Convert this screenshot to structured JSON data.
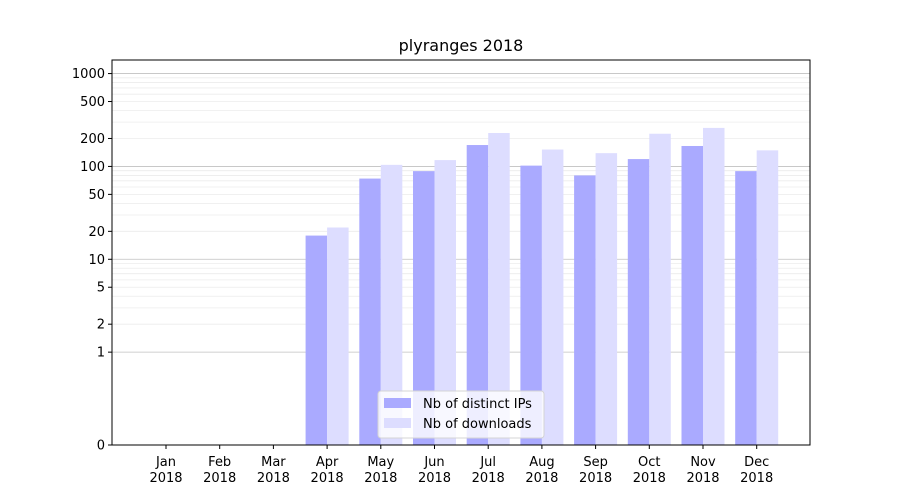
{
  "chart_data": {
    "type": "bar",
    "title": "plyranges 2018",
    "xlabel": "",
    "ylabel": "",
    "y_scale": "symlog",
    "ylim": [
      0,
      1400
    ],
    "y_ticks": [
      {
        "value": 0,
        "label": "0"
      },
      {
        "value": 1,
        "label": "1"
      },
      {
        "value": 2,
        "label": "2"
      },
      {
        "value": 5,
        "label": "5"
      },
      {
        "value": 10,
        "label": "10"
      },
      {
        "value": 20,
        "label": "20"
      },
      {
        "value": 50,
        "label": "50"
      },
      {
        "value": 100,
        "label": "100"
      },
      {
        "value": 200,
        "label": "200"
      },
      {
        "value": 500,
        "label": "500"
      },
      {
        "value": 1000,
        "label": "1000"
      }
    ],
    "categories": [
      [
        "Jan",
        "2018"
      ],
      [
        "Feb",
        "2018"
      ],
      [
        "Mar",
        "2018"
      ],
      [
        "Apr",
        "2018"
      ],
      [
        "May",
        "2018"
      ],
      [
        "Jun",
        "2018"
      ],
      [
        "Jul",
        "2018"
      ],
      [
        "Aug",
        "2018"
      ],
      [
        "Sep",
        "2018"
      ],
      [
        "Oct",
        "2018"
      ],
      [
        "Nov",
        "2018"
      ],
      [
        "Dec",
        "2018"
      ]
    ],
    "series": [
      {
        "name": "Nb of distinct IPs",
        "color": "#aaaaff",
        "values": [
          0,
          0,
          0,
          18,
          74,
          89,
          170,
          102,
          80,
          120,
          166,
          89
        ]
      },
      {
        "name": "Nb of downloads",
        "color": "#ddddff",
        "values": [
          0,
          0,
          0,
          22,
          104,
          117,
          229,
          152,
          139,
          225,
          260,
          149
        ]
      }
    ],
    "grid": {
      "major": true,
      "minor": true,
      "major_color": "#c0c0c0",
      "minor_color": "#ececec"
    },
    "legend": "lower-center"
  }
}
